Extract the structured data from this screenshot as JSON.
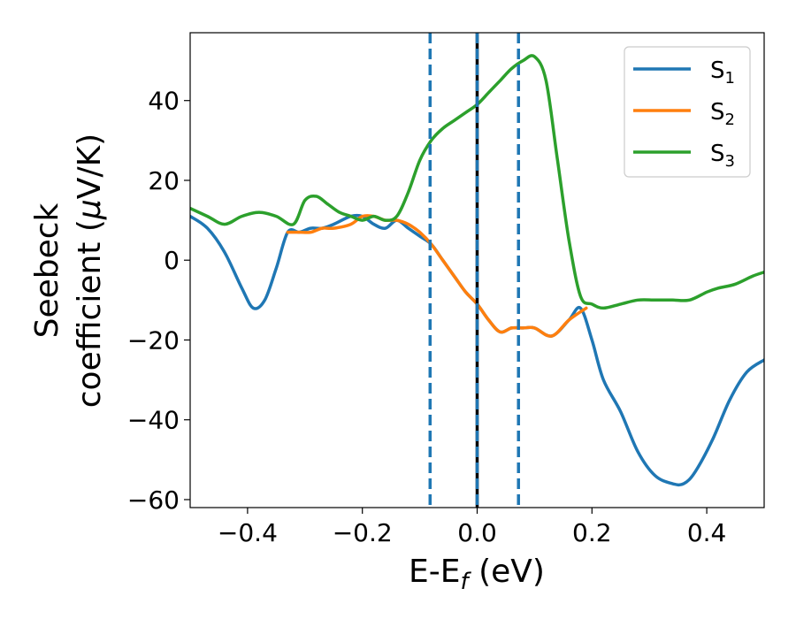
{
  "chart_data": {
    "type": "line",
    "xlabel": "E-E",
    "xlabel_sub": "f",
    "xlabel_unit": " (eV)",
    "ylabel_line1": "Seebeck",
    "ylabel_line2": "coefficient  (",
    "ylabel_mu": "μ",
    "ylabel_unit": "V/K)",
    "xlim": [
      -0.5,
      0.5
    ],
    "ylim": [
      -62,
      57
    ],
    "x_ticks": [
      -0.4,
      -0.2,
      0.0,
      0.2,
      0.4
    ],
    "x_tick_labels": [
      "−0.4",
      "−0.2",
      "0.0",
      "0.2",
      "0.4"
    ],
    "y_ticks": [
      -60,
      -40,
      -20,
      0,
      20,
      40
    ],
    "y_tick_labels": [
      "−60",
      "−40",
      "−20",
      "0",
      "20",
      "40"
    ],
    "grid": false,
    "legend_position": "top-right",
    "vertical_lines": [
      {
        "x": -0.082,
        "style": "dashed",
        "color": "#1f77b4"
      },
      {
        "x": 0.0,
        "style": "solid",
        "color": "#000000"
      },
      {
        "x": 0.0,
        "style": "dashed",
        "color": "#1f77b4"
      },
      {
        "x": 0.072,
        "style": "dashed",
        "color": "#1f77b4"
      }
    ],
    "series": [
      {
        "name": "S",
        "name_sub": "1",
        "color": "#1f77b4",
        "x": [
          -0.5,
          -0.47,
          -0.44,
          -0.41,
          -0.39,
          -0.37,
          -0.35,
          -0.33,
          -0.31,
          -0.29,
          -0.27,
          -0.25,
          -0.22,
          -0.2,
          -0.18,
          -0.16,
          -0.14,
          -0.12,
          -0.1,
          -0.08,
          -0.06,
          -0.04,
          -0.02,
          0.0,
          0.02,
          0.04,
          0.06,
          0.08,
          0.1,
          0.13,
          0.16,
          0.18,
          0.2,
          0.22,
          0.25,
          0.28,
          0.31,
          0.34,
          0.36,
          0.38,
          0.41,
          0.44,
          0.47,
          0.5
        ],
        "y": [
          11,
          8,
          2,
          -7,
          -12,
          -10,
          -2,
          7,
          7,
          8,
          8,
          9,
          11,
          11,
          9,
          8,
          10,
          8,
          6,
          4,
          0,
          -4,
          -8,
          -11,
          -15,
          -18,
          -17,
          -17,
          -17,
          -19,
          -15,
          -12,
          -20,
          -30,
          -38,
          -48,
          -54,
          -56,
          -56,
          -53,
          -45,
          -35,
          -28,
          -25
        ]
      },
      {
        "name": "S",
        "name_sub": "2",
        "color": "#ff7f0e",
        "x": [
          -0.33,
          -0.31,
          -0.29,
          -0.27,
          -0.25,
          -0.22,
          -0.2,
          -0.18,
          -0.16,
          -0.14,
          -0.12,
          -0.1,
          -0.08,
          -0.06,
          -0.04,
          -0.02,
          0.0,
          0.02,
          0.04,
          0.06,
          0.08,
          0.1,
          0.13,
          0.16,
          0.19
        ],
        "y": [
          7,
          7,
          7,
          8,
          8,
          9,
          11,
          11,
          10,
          10,
          9,
          7,
          4,
          0,
          -4,
          -8,
          -11,
          -15,
          -18,
          -17,
          -17,
          -17,
          -19,
          -15,
          -12
        ]
      },
      {
        "name": "S",
        "name_sub": "3",
        "color": "#2ca02c",
        "x": [
          -0.5,
          -0.47,
          -0.44,
          -0.41,
          -0.38,
          -0.35,
          -0.32,
          -0.3,
          -0.28,
          -0.26,
          -0.24,
          -0.22,
          -0.2,
          -0.18,
          -0.16,
          -0.14,
          -0.12,
          -0.1,
          -0.08,
          -0.06,
          -0.04,
          -0.02,
          0.0,
          0.02,
          0.04,
          0.06,
          0.08,
          0.1,
          0.12,
          0.14,
          0.16,
          0.18,
          0.2,
          0.22,
          0.25,
          0.28,
          0.31,
          0.34,
          0.37,
          0.4,
          0.42,
          0.45,
          0.48,
          0.5
        ],
        "y": [
          13,
          11,
          9,
          11,
          12,
          11,
          9,
          15,
          16,
          14,
          12,
          11,
          10,
          11,
          10,
          11,
          17,
          25,
          30,
          33,
          35,
          37,
          39,
          42,
          45,
          48,
          50,
          51,
          45,
          25,
          5,
          -9,
          -11,
          -12,
          -11,
          -10,
          -10,
          -10,
          -10,
          -8,
          -7,
          -6,
          -4,
          -3
        ]
      }
    ]
  }
}
